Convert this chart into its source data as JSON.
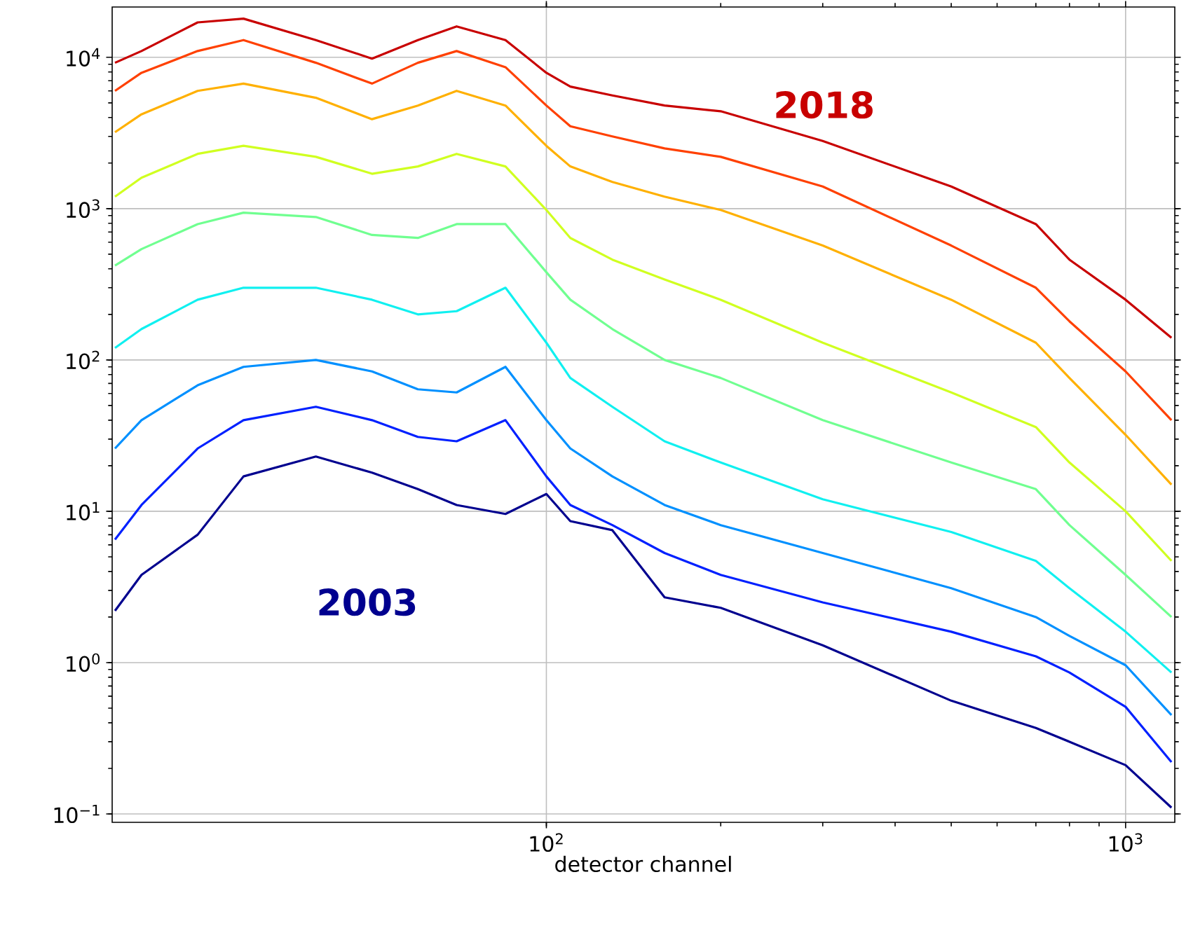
{
  "chart_data": {
    "type": "line",
    "xlabel": "detector channel",
    "log": "xy",
    "grid": true,
    "legend": false,
    "marker": "none",
    "line_style": "solid",
    "xlim": [
      17.8,
      1216
    ],
    "ylim": [
      0.088,
      21500
    ],
    "xticks": [
      {
        "value": 100,
        "label": "10$^{2}$"
      },
      {
        "value": 1000,
        "label": "10$^{3}$"
      }
    ],
    "yticks": [
      {
        "value": 0.1,
        "label": "10$^{−1}$"
      },
      {
        "value": 1,
        "label": "10$^{0}$"
      },
      {
        "value": 10,
        "label": "10$^{1}$"
      },
      {
        "value": 100,
        "label": "10$^{2}$"
      },
      {
        "value": 1000,
        "label": "10$^{3}$"
      },
      {
        "value": 10000,
        "label": "10$^{4}$"
      }
    ],
    "x": [
      18,
      20,
      25,
      30,
      40,
      50,
      60,
      70,
      85,
      100,
      110,
      130,
      160,
      200,
      300,
      500,
      700,
      800,
      1000,
      1200
    ],
    "series": [
      {
        "color": "#00008f",
        "values": [
          2.2,
          3.8,
          7,
          17,
          23,
          18,
          14,
          11,
          9.6,
          13,
          8.6,
          7.5,
          2.7,
          2.3,
          1.3,
          0.56,
          0.37,
          0.3,
          0.21,
          0.11
        ]
      },
      {
        "color": "#0020ff",
        "values": [
          6.5,
          11,
          26,
          40,
          49,
          40,
          31,
          29,
          40,
          17,
          11,
          8.1,
          5.3,
          3.8,
          2.5,
          1.6,
          1.1,
          0.86,
          0.51,
          0.22
        ]
      },
      {
        "color": "#0090ff",
        "values": [
          26,
          40,
          68,
          90,
          100,
          84,
          64,
          61,
          90,
          40,
          26,
          17,
          11,
          8.1,
          5.3,
          3.1,
          2,
          1.5,
          0.96,
          0.45
        ]
      },
      {
        "color": "#10f0f0",
        "values": [
          120,
          160,
          250,
          300,
          300,
          250,
          200,
          210,
          300,
          130,
          76,
          49,
          29,
          21,
          12,
          7.3,
          4.7,
          3.1,
          1.6,
          0.86
        ]
      },
      {
        "color": "#70ff90",
        "values": [
          420,
          540,
          790,
          940,
          880,
          670,
          640,
          790,
          790,
          380,
          250,
          160,
          100,
          76,
          40,
          21,
          14,
          8.1,
          3.8,
          2
        ]
      },
      {
        "color": "#d0ff20",
        "values": [
          1200,
          1600,
          2300,
          2600,
          2200,
          1700,
          1900,
          2300,
          1900,
          980,
          640,
          460,
          340,
          250,
          130,
          61,
          36,
          21,
          10,
          4.7
        ]
      },
      {
        "color": "#ffb000",
        "values": [
          3200,
          4200,
          6000,
          6700,
          5400,
          3900,
          4800,
          6000,
          4800,
          2600,
          1900,
          1500,
          1200,
          980,
          570,
          250,
          130,
          76,
          32,
          15
        ]
      },
      {
        "color": "#ff4000",
        "values": [
          6000,
          7900,
          11000,
          13000,
          9200,
          6700,
          9200,
          11000,
          8600,
          4800,
          3500,
          3000,
          2500,
          2200,
          1400,
          570,
          300,
          180,
          84,
          40
        ]
      },
      {
        "color": "#c80000",
        "values": [
          9200,
          11000,
          17000,
          18000,
          13000,
          9800,
          13000,
          16000,
          13000,
          7900,
          6400,
          5600,
          4800,
          4400,
          2800,
          1400,
          790,
          460,
          250,
          140
        ]
      }
    ],
    "annotations": [
      "2018",
      "2003"
    ]
  }
}
